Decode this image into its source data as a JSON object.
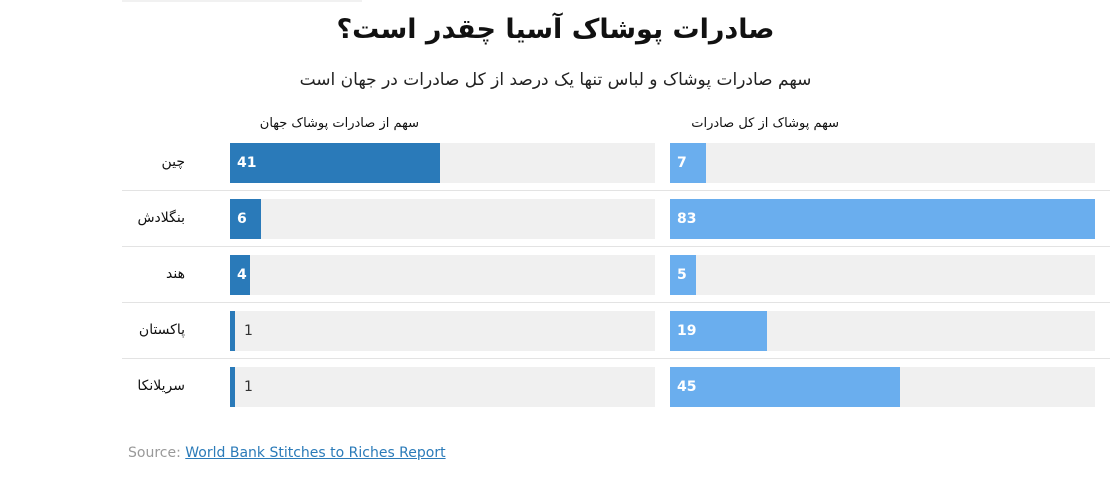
{
  "title": "صادرات پوشاک آسیا چقدر است؟",
  "subtitle": "سهم صادرات پوشاک و لباس تنها یک درصد از کل صادرات در جهان است",
  "source": {
    "label": "Source:",
    "link_text": "World Bank Stitches to Riches Report"
  },
  "colors": {
    "left_bar": "#2a7ab9",
    "right_bar": "#6aaeee",
    "track": "#f0f0f0"
  },
  "chart_data": {
    "type": "bar",
    "orientation": "horizontal",
    "categories": [
      "چین",
      "بنگلادش",
      "هند",
      "پاکستان",
      "سریلانکا"
    ],
    "series": [
      {
        "name": "سهم از صادرات پوشاک جهان",
        "values": [
          41,
          6,
          4,
          1,
          1
        ],
        "xlim": [
          0,
          83
        ]
      },
      {
        "name": "سهم پوشاک از کل صادرات",
        "values": [
          7,
          83,
          5,
          19,
          45
        ],
        "xlim": [
          0,
          83
        ]
      }
    ]
  }
}
